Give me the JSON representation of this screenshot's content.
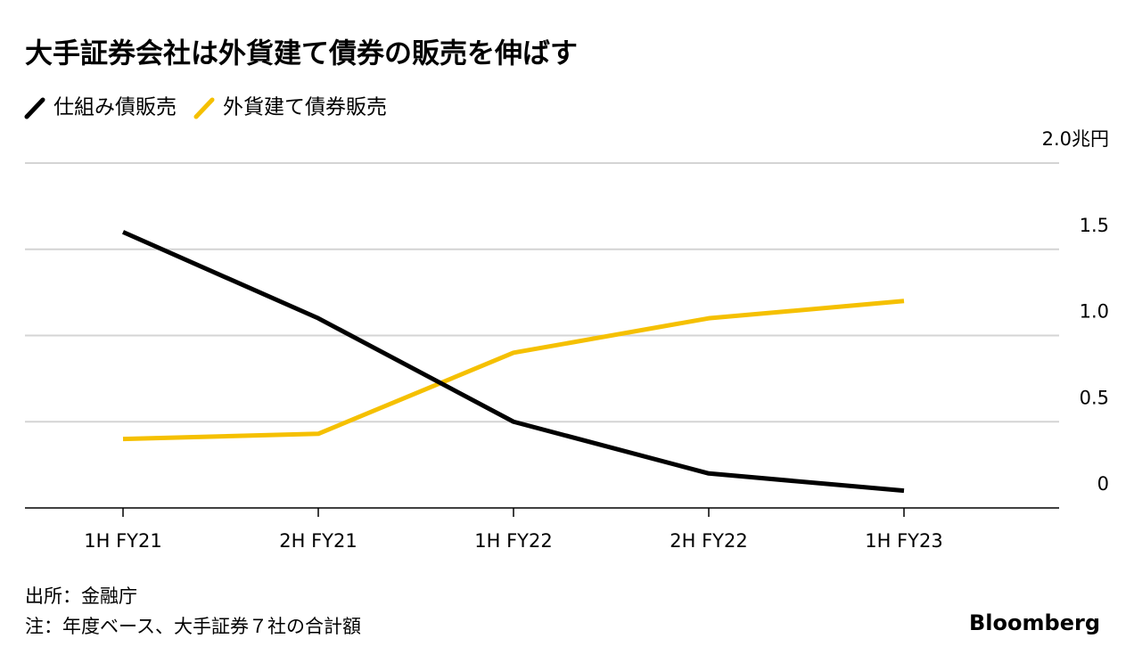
{
  "chart_data": {
    "type": "line",
    "title": "大手証券会社は外貨建て債券の販売を伸ばす",
    "categories": [
      "1H FY21",
      "2H FY21",
      "1H FY22",
      "2H FY22",
      "1H FY23"
    ],
    "series": [
      {
        "name": "仕組み債販売",
        "color": "#000000",
        "values": [
          1.6,
          1.1,
          0.5,
          0.2,
          0.1
        ]
      },
      {
        "name": "外貨建て債券販売",
        "color": "#f5c000",
        "values": [
          0.4,
          0.43,
          0.9,
          1.1,
          1.2
        ]
      }
    ],
    "ylim": [
      0,
      2
    ],
    "yticks": [
      0,
      0.5,
      {
        "value": 1.0,
        "label": "1.0"
      },
      1.5,
      {
        "value": 2.0,
        "label": "2.0兆円"
      }
    ],
    "grid": true,
    "source": "出所：金融庁",
    "note": "注：年度ベース、大手証券７社の合計額",
    "brand": "Bloomberg"
  }
}
